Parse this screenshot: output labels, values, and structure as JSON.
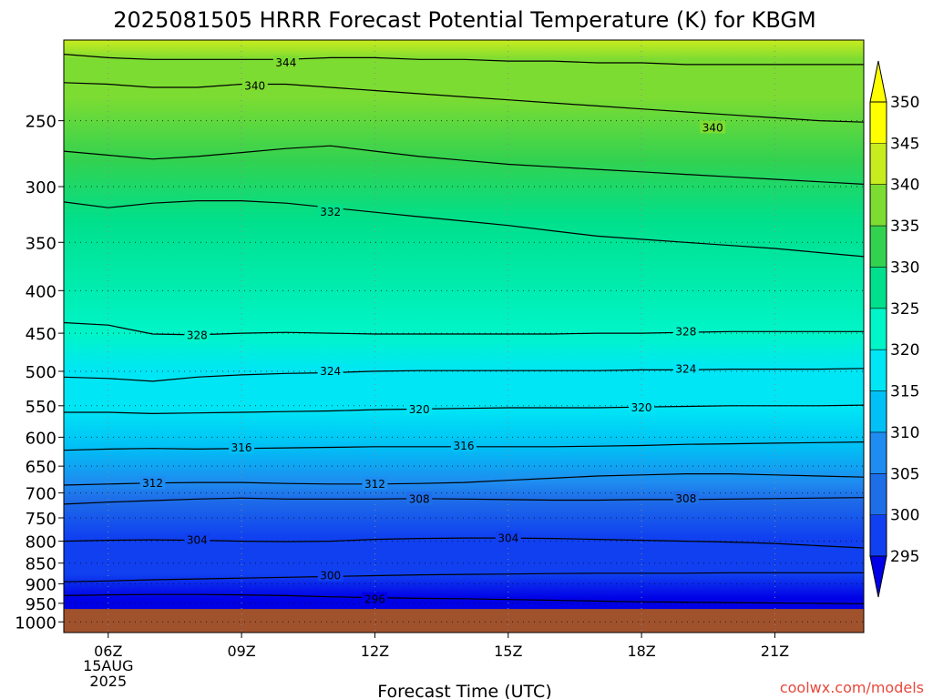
{
  "chart_data": {
    "type": "heatmap",
    "title": "2025081505 HRRR Forecast Potential Temperature (K) for KBGM",
    "xlabel": "Forecast Time (UTC)",
    "ylabel": "",
    "credit": "coolwx.com/models",
    "x_ticks": [
      {
        "hour": 6,
        "label": "06Z",
        "sub": [
          "15AUG",
          "2025"
        ]
      },
      {
        "hour": 9,
        "label": "09Z"
      },
      {
        "hour": 12,
        "label": "12Z"
      },
      {
        "hour": 15,
        "label": "15Z"
      },
      {
        "hour": 18,
        "label": "18Z"
      },
      {
        "hour": 21,
        "label": "21Z"
      }
    ],
    "xlim": [
      5,
      23
    ],
    "y_axis": "pressure (hPa), log scale, inverted",
    "ylim": [
      1030,
      200
    ],
    "y_ticks": [
      250,
      300,
      350,
      400,
      450,
      500,
      550,
      600,
      650,
      700,
      750,
      800,
      850,
      900,
      950,
      1000
    ],
    "ground_pressure": 965,
    "ground_color": "#a0522d",
    "grid": "dotted",
    "colorbar": {
      "placement": "right",
      "levels": [
        295,
        300,
        305,
        310,
        315,
        320,
        325,
        330,
        335,
        340,
        345,
        350
      ],
      "colors": [
        "#0000e6",
        "#1040f0",
        "#1e6ee8",
        "#1e8cf0",
        "#00c0f5",
        "#00e6f5",
        "#00f5c8",
        "#00e08c",
        "#32d250",
        "#7ddc32",
        "#c8ec1e",
        "#ffff00"
      ],
      "extend": "both"
    },
    "series": [
      {
        "value": 296,
        "levels_hpa": [
          930,
          928,
          927,
          927,
          928,
          930,
          933,
          935,
          937,
          938,
          940,
          942,
          944,
          946,
          947,
          948,
          949,
          950,
          951
        ]
      },
      {
        "value": 300,
        "levels_hpa": [
          895,
          893,
          890,
          888,
          886,
          884,
          882,
          880,
          878,
          877,
          876,
          875,
          874,
          874,
          874,
          873,
          873,
          873,
          873
        ]
      },
      {
        "value": 304,
        "levels_hpa": [
          800,
          798,
          797,
          798,
          800,
          801,
          800,
          796,
          794,
          793,
          793,
          794,
          796,
          798,
          800,
          802,
          805,
          810,
          815
        ]
      },
      {
        "value": 308,
        "levels_hpa": [
          722,
          718,
          715,
          712,
          710,
          712,
          712,
          712,
          711,
          712,
          713,
          714,
          714,
          713,
          713,
          712,
          711,
          710,
          709
        ]
      },
      {
        "value": 312,
        "levels_hpa": [
          685,
          683,
          681,
          680,
          680,
          682,
          683,
          683,
          682,
          680,
          676,
          672,
          668,
          666,
          664,
          664,
          666,
          668,
          670
        ]
      },
      {
        "value": 316,
        "levels_hpa": [
          622,
          620,
          619,
          620,
          619,
          618,
          617,
          616,
          616,
          616,
          616,
          616,
          615,
          614,
          612,
          611,
          610,
          609,
          608
        ]
      },
      {
        "value": 320,
        "levels_hpa": [
          560,
          560,
          562,
          561,
          560,
          559,
          558,
          556,
          555,
          554,
          553,
          553,
          553,
          552,
          551,
          550,
          550,
          550,
          549
        ]
      },
      {
        "value": 324,
        "levels_hpa": [
          508,
          510,
          514,
          508,
          505,
          503,
          502,
          500,
          499,
          499,
          499,
          499,
          499,
          498,
          498,
          497,
          497,
          497,
          496
        ]
      },
      {
        "value": 328,
        "levels_hpa": [
          437,
          440,
          451,
          452,
          450,
          449,
          450,
          451,
          451,
          451,
          451,
          451,
          450,
          450,
          449,
          448,
          448,
          448,
          448
        ]
      },
      {
        "value": 332,
        "levels_hpa": [
          313,
          318,
          314,
          312,
          312,
          314,
          318,
          322,
          326,
          330,
          334,
          339,
          344,
          347,
          350,
          353,
          356,
          360,
          364
        ]
      },
      {
        "value": 336,
        "levels_hpa": [
          272,
          275,
          278,
          276,
          273,
          270,
          268,
          272,
          276,
          279,
          282,
          284,
          286,
          288,
          290,
          292,
          294,
          296,
          298
        ]
      },
      {
        "value": 340,
        "levels_hpa": [
          225,
          226,
          228,
          228,
          226,
          226,
          228,
          230,
          232,
          234,
          236,
          238,
          240,
          242,
          244,
          246,
          248,
          250,
          251
        ]
      },
      {
        "value": 344,
        "levels_hpa": [
          208,
          210,
          211,
          211,
          211,
          211,
          210,
          210,
          211,
          211,
          212,
          212,
          213,
          213,
          214,
          214,
          214,
          214,
          214
        ]
      }
    ],
    "contour_labels": [
      {
        "text": "344",
        "hour": 10.0,
        "p": 213
      },
      {
        "text": "340",
        "hour": 9.3,
        "p": 227
      },
      {
        "text": "340",
        "hour": 19.6,
        "p": 255
      },
      {
        "text": "332",
        "hour": 11.0,
        "p": 322
      },
      {
        "text": "328",
        "hour": 8.0,
        "p": 453
      },
      {
        "text": "328",
        "hour": 19.0,
        "p": 448
      },
      {
        "text": "324",
        "hour": 11.0,
        "p": 500
      },
      {
        "text": "324",
        "hour": 19.0,
        "p": 497
      },
      {
        "text": "320",
        "hour": 13.0,
        "p": 556
      },
      {
        "text": "320",
        "hour": 18.0,
        "p": 553
      },
      {
        "text": "316",
        "hour": 9.0,
        "p": 618
      },
      {
        "text": "316",
        "hour": 14.0,
        "p": 615
      },
      {
        "text": "312",
        "hour": 7.0,
        "p": 682
      },
      {
        "text": "312",
        "hour": 12.0,
        "p": 683
      },
      {
        "text": "308",
        "hour": 13.0,
        "p": 712
      },
      {
        "text": "308",
        "hour": 19.0,
        "p": 711
      },
      {
        "text": "304",
        "hour": 8.0,
        "p": 798
      },
      {
        "text": "304",
        "hour": 15.0,
        "p": 794
      },
      {
        "text": "300",
        "hour": 11.0,
        "p": 880
      },
      {
        "text": "296",
        "hour": 12.0,
        "p": 940
      }
    ]
  }
}
